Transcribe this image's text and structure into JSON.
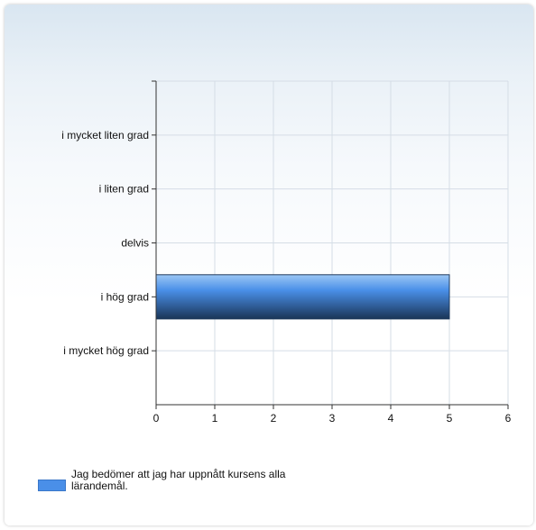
{
  "chart_data": {
    "type": "bar",
    "orientation": "horizontal",
    "categories": [
      "i mycket liten grad",
      "i liten grad",
      "delvis",
      "i hög grad",
      "i mycket hög grad"
    ],
    "series": [
      {
        "name": "Jag bedömer att jag har uppnått kursens alla lärandemål.",
        "values": [
          0,
          0,
          0,
          5,
          0
        ]
      }
    ],
    "xlim": [
      0,
      6
    ],
    "xticks": [
      "0",
      "1",
      "2",
      "3",
      "4",
      "5",
      "6"
    ],
    "grid": true,
    "legend_position": "bottom-left",
    "colors": {
      "bar_top": "#9cc7f5",
      "bar_mid": "#4a8fe8",
      "bar_bottom": "#1a3557",
      "grid": "#d5dde6",
      "axis": "#333333"
    }
  },
  "legend": {
    "label": "Jag bedömer att jag har uppnått kursens alla lärandemål."
  }
}
